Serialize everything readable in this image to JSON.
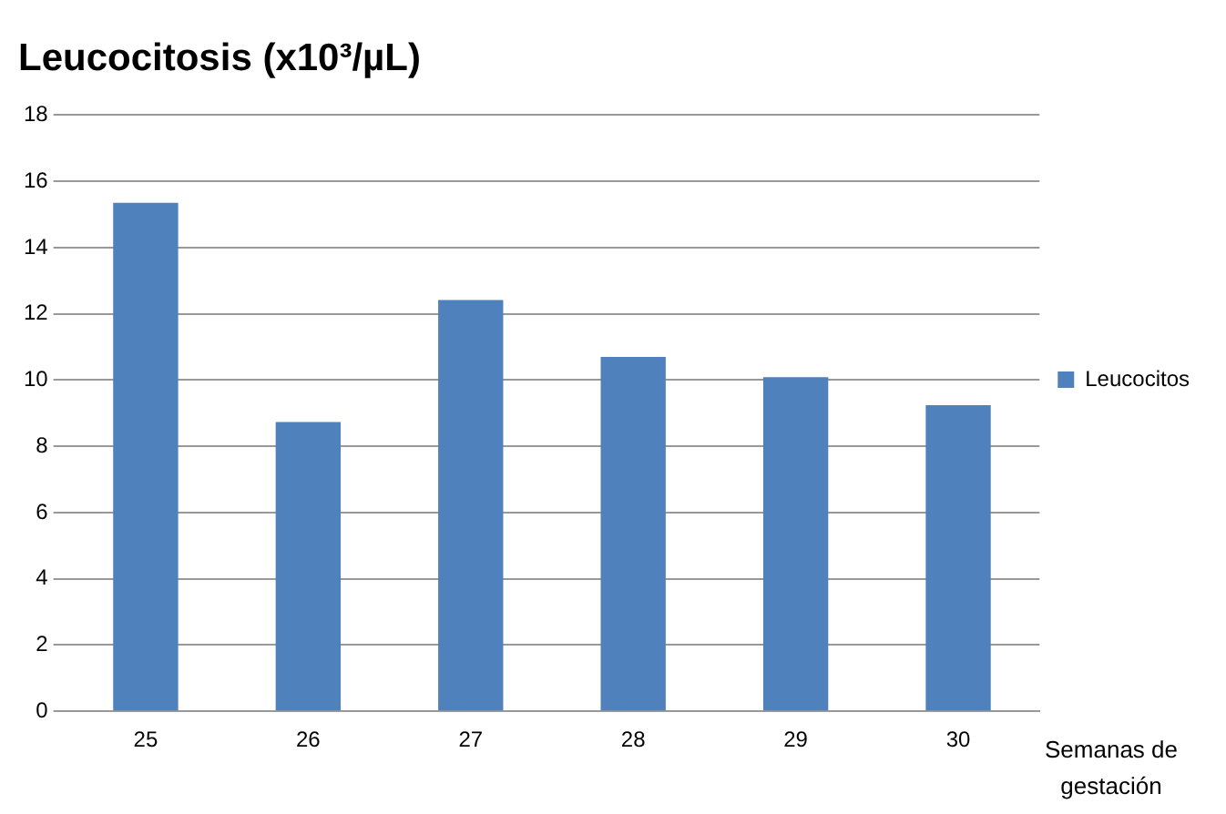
{
  "chart_data": {
    "type": "bar",
    "title": "Leucocitosis (x10³/µL)",
    "xlabel": "Semanas de gestación",
    "categories": [
      "25",
      "26",
      "27",
      "28",
      "29",
      "30"
    ],
    "series": [
      {
        "name": "Leucocitos",
        "color": "#4f81bd",
        "values": [
          15.35,
          8.73,
          12.42,
          10.7,
          10.09,
          9.24
        ]
      }
    ],
    "ylim": [
      0,
      18
    ],
    "yticks": [
      0,
      2,
      4,
      6,
      8,
      10,
      12,
      14,
      16,
      18
    ],
    "grid": "y",
    "legend": "right"
  }
}
